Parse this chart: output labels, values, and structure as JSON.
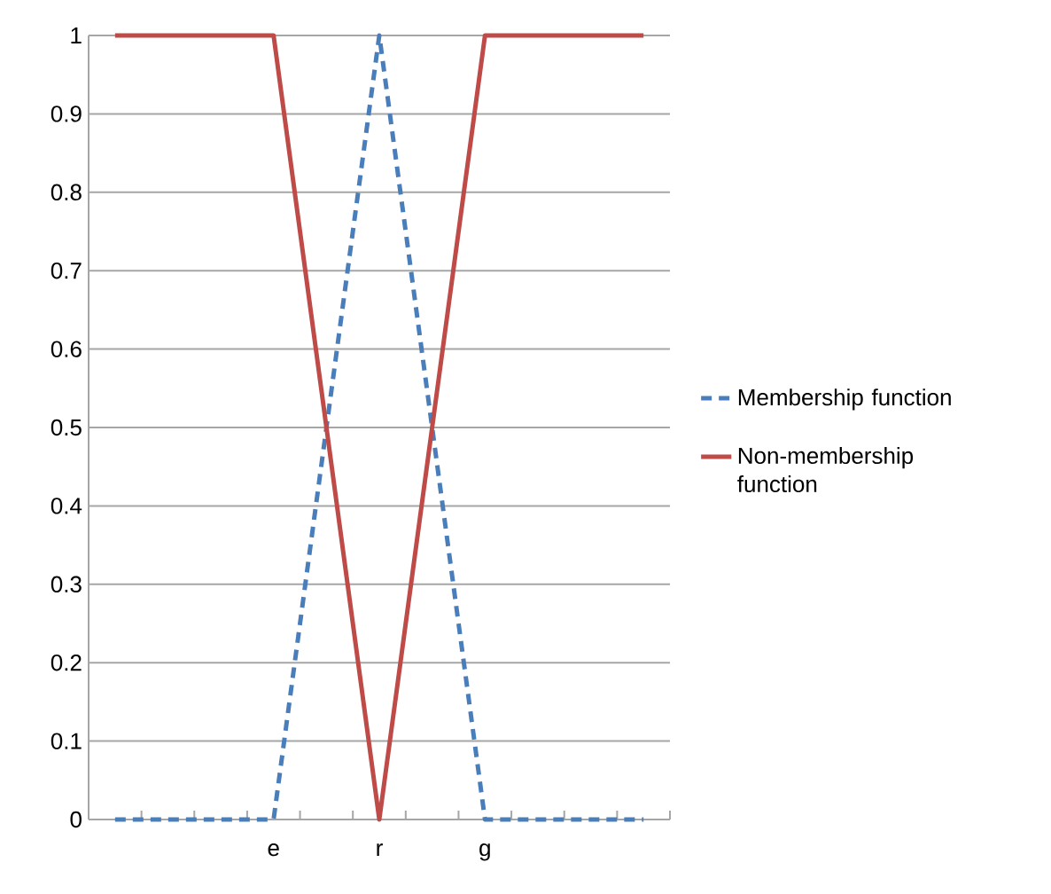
{
  "chart_data": {
    "type": "line",
    "categories": [
      null,
      null,
      null,
      "e",
      null,
      "r",
      null,
      "g",
      null,
      null,
      null
    ],
    "series": [
      {
        "name": "Membership function",
        "color": "#4a7ebb",
        "line_style": "dashed",
        "values": [
          0,
          0,
          0,
          0,
          0.5,
          1,
          0.5,
          0,
          0,
          0,
          0
        ]
      },
      {
        "name": "Non-membership function",
        "color": "#be4b48",
        "line_style": "solid",
        "values": [
          1,
          1,
          1,
          1,
          0.5,
          0,
          0.5,
          1,
          1,
          1,
          1
        ]
      }
    ],
    "ylim": [
      0,
      1
    ],
    "yticks": [
      0,
      0.1,
      0.2,
      0.3,
      0.4,
      0.5,
      0.6,
      0.7,
      0.8,
      0.9,
      1
    ],
    "grid": "y",
    "legend": "right",
    "marker": "none"
  }
}
